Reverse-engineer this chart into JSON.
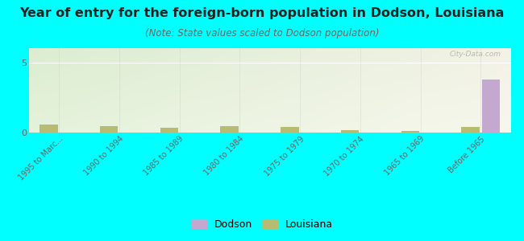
{
  "title": "Year of entry for the foreign-born population in Dodson, Louisiana",
  "subtitle": "(Note: State values scaled to Dodson population)",
  "categories": [
    "1995 to Marc...",
    "1990 to 1994",
    "1985 to 1989",
    "1980 to 1984",
    "1975 to 1979",
    "1970 to 1974",
    "1965 to 1969",
    "Before 1965"
  ],
  "dodson_values": [
    0,
    0,
    0,
    0,
    0,
    0,
    0,
    3.8
  ],
  "louisiana_values": [
    0.55,
    0.48,
    0.32,
    0.45,
    0.38,
    0.18,
    0.1,
    0.38
  ],
  "dodson_color": "#c4a8d0",
  "louisiana_color": "#b8bc72",
  "background_color": "#00ffff",
  "ylim": [
    0,
    6
  ],
  "yticks": [
    0,
    5
  ],
  "bar_width": 0.3,
  "title_fontsize": 11.5,
  "subtitle_fontsize": 8.5,
  "watermark": "City-Data.com"
}
